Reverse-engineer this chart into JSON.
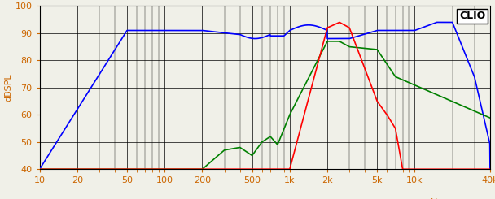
{
  "title": "CLIO",
  "ylabel": "dBSPL",
  "xmin": 10,
  "xmax": 40000,
  "ymin": 40,
  "ymax": 100,
  "yticks": [
    40,
    50,
    60,
    70,
    80,
    90,
    100
  ],
  "xticks": [
    10,
    20,
    50,
    100,
    200,
    500,
    1000,
    2000,
    5000,
    10000,
    40000
  ],
  "xticklabels": [
    "10",
    "20",
    "50",
    "100",
    "200",
    "500",
    "1k",
    "2k",
    "5k",
    "10k",
    "40k"
  ],
  "background_color": "#f0f0e8",
  "grid_color": "#000000",
  "line_blue": "blue",
  "line_red": "red",
  "line_green": "green"
}
